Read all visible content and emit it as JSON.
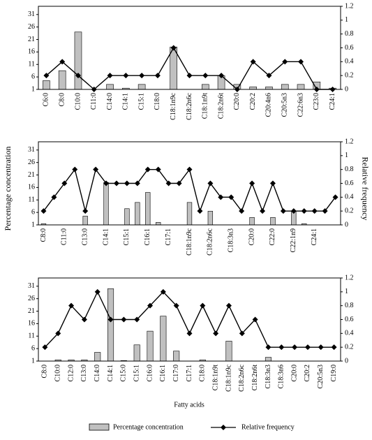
{
  "chart_data": [
    {
      "type": "bar_line",
      "categories": [
        "C6:0",
        "C8:0",
        "C10:0",
        "C11:0",
        "C14:0",
        "C14:1",
        "C15:1",
        "C18:0",
        "C18:1n9c",
        "C18:2n6c",
        "C18:1n9t",
        "C18:2n6t",
        "C20:0",
        "C20:2",
        "C20:4n6",
        "C20:5n3",
        "C22:6n3",
        "C23:0",
        "C24:1"
      ],
      "series": [
        {
          "name": "Percentage concentration",
          "color": "#c0c0c0",
          "kind": "bar",
          "values": [
            4.5,
            8.5,
            24,
            null,
            3,
            1.5,
            3,
            null,
            18,
            null,
            3,
            6.5,
            3,
            2,
            2,
            3,
            3,
            4,
            1.5
          ]
        },
        {
          "name": "Relative frequency",
          "color": "#000000",
          "kind": "line",
          "axis": "y2",
          "values": [
            0.2,
            0.4,
            0.2,
            0,
            0.2,
            0.2,
            0.2,
            0.2,
            0.6,
            0.2,
            0.2,
            0.2,
            0,
            0.4,
            0.2,
            0.4,
            0.4,
            0,
            0
          ]
        }
      ],
      "ylim": [
        1,
        34.3
      ],
      "yticks": [
        1,
        6,
        11,
        16,
        21,
        26,
        31
      ],
      "y2lim": [
        0,
        1.2
      ],
      "y2ticks": [
        0,
        0.2,
        0.4,
        0.6,
        0.8,
        1,
        1.2
      ]
    },
    {
      "type": "bar_line",
      "y_label": "Percentage concentration",
      "y2_label": "Relative frequency",
      "categories": [
        "C8:0",
        null,
        "C11:0",
        null,
        "C13:0",
        null,
        "C14:1",
        null,
        "C15:1",
        null,
        "C16:1",
        null,
        "C17:1",
        null,
        "C18:1n9c",
        null,
        "C18:2n6c",
        null,
        "C18:3n3",
        null,
        "C20:0",
        null,
        "C22:0",
        null,
        "C22:1n9",
        null,
        "C24:1",
        null,
        null
      ],
      "series": [
        {
          "name": "Percentage concentration",
          "color": "#c0c0c0",
          "kind": "bar",
          "values": [
            1.5,
            null,
            1,
            null,
            4.5,
            null,
            18,
            null,
            7.5,
            10,
            14,
            2,
            1,
            null,
            10,
            null,
            6.5,
            null,
            null,
            null,
            4,
            null,
            4,
            null,
            6.5,
            1.5,
            1,
            null,
            null
          ]
        },
        {
          "name": "Relative frequency",
          "color": "#000000",
          "kind": "line",
          "axis": "y2",
          "values": [
            0.2,
            0.4,
            0.6,
            0.8,
            0.2,
            0.8,
            0.6,
            0.6,
            0.6,
            0.6,
            0.8,
            0.8,
            0.6,
            0.6,
            0.8,
            0.2,
            0.6,
            0.4,
            0.4,
            0.2,
            0.6,
            0.2,
            0.6,
            0.2,
            0.2,
            0.2,
            0.2,
            0.2,
            0.4
          ]
        }
      ],
      "ylim": [
        1,
        34.3
      ],
      "yticks": [
        1,
        6,
        11,
        16,
        21,
        26,
        31
      ],
      "y2lim": [
        0,
        1.2
      ],
      "y2ticks": [
        0,
        0.2,
        0.4,
        0.6,
        0.8,
        1,
        1.2
      ]
    },
    {
      "type": "bar_line",
      "x_label": "Fatty acids",
      "categories": [
        "C8:0",
        "C10:0",
        "C12:0",
        "C13:0",
        "C14:0",
        "C14:1",
        "C15:0",
        "C15:1",
        "C16:0",
        "C16:1",
        "C17:0",
        "C17:1",
        "C18:0",
        "C18:1n9t",
        "C18:1n9c",
        "C18:2n6c",
        "C18:2n6t",
        "C18:3n3",
        "C18:3n6",
        "C20:0",
        "C20:2",
        "C20:5n3",
        "C19:0"
      ],
      "series": [
        {
          "name": "Percentage concentration",
          "color": "#c0c0c0",
          "kind": "bar",
          "values": [
            null,
            1.5,
            1.5,
            1.5,
            4.5,
            30,
            1.2,
            7.5,
            13,
            19,
            5,
            null,
            1.5,
            null,
            9,
            null,
            null,
            2.5,
            null,
            null,
            null,
            null,
            null
          ]
        },
        {
          "name": "Relative frequency",
          "color": "#000000",
          "kind": "line",
          "axis": "y2",
          "values": [
            0.2,
            0.4,
            0.8,
            0.6,
            1,
            0.6,
            0.6,
            0.6,
            0.8,
            1,
            0.8,
            0.4,
            0.8,
            0.4,
            0.8,
            0.4,
            0.6,
            0.2,
            0.2,
            0.2,
            0.2,
            0.2,
            0.2
          ]
        }
      ],
      "ylim": [
        1,
        34.3
      ],
      "yticks": [
        1,
        6,
        11,
        16,
        21,
        26,
        31
      ],
      "y2lim": [
        0,
        1.2
      ],
      "y2ticks": [
        0,
        0.2,
        0.4,
        0.6,
        0.8,
        1,
        1.2
      ]
    }
  ]
}
